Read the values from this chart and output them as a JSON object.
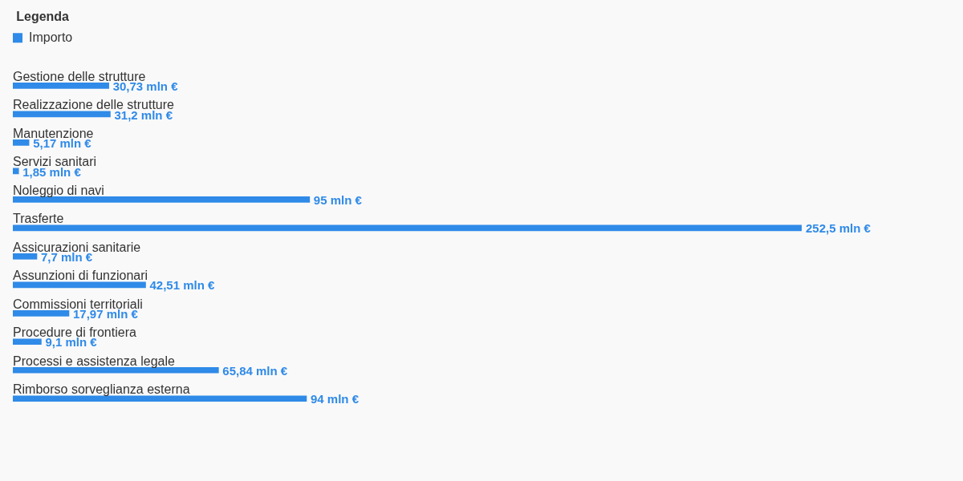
{
  "chart_data": {
    "type": "bar",
    "orientation": "horizontal",
    "legend_title": "Legenda",
    "legend": "top left",
    "tick_labels": "y",
    "categories": [
      "Gestione delle strutture",
      "Realizzazione delle strutture",
      "Manutenzione",
      "Servizi sanitari",
      "Noleggio di navi",
      "Trasferte",
      "Assicurazioni sanitarie",
      "Assunzioni di funzionari",
      "Commissioni territoriali",
      "Procedure di frontiera",
      "Processi e assistenza legale",
      "Rimborso sorveglianza esterna"
    ],
    "series": [
      {
        "name": "Importo",
        "color": "#2f8ae8",
        "values": [
          30.73,
          31.2,
          5.17,
          1.85,
          95,
          252.5,
          7.7,
          42.51,
          17.97,
          9.1,
          65.84,
          94
        ],
        "value_labels": [
          "30,73 mln €",
          "31,2 mln €",
          "5,17 mln €",
          "1,85 mln €",
          "95 mln €",
          "252,5 mln €",
          "7,7 mln €",
          "42,51 mln €",
          "17,97 mln €",
          "9,1 mln €",
          "65,84 mln €",
          "94 mln €"
        ]
      }
    ]
  }
}
